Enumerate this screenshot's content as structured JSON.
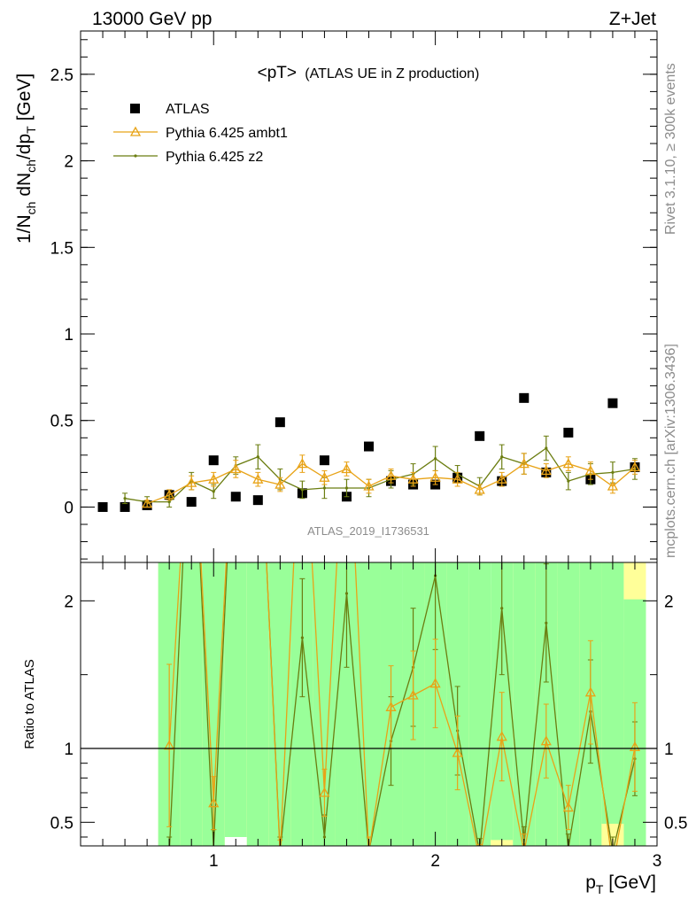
{
  "header": {
    "left": "13000 GeV pp",
    "right": "Z+Jet"
  },
  "side_labels": {
    "rivet": "Rivet 3.1.10, ≥ 300k events",
    "mcplots": "mcplots.cern.ch [arXiv:1306.3436]"
  },
  "analysis_id": "ATLAS_2019_I1736531",
  "colors": {
    "data": "#000000",
    "ambt1": "#e8a317",
    "z2": "#6b7d10",
    "band_ambt1": "#ffff99",
    "band_z2": "#99ff99"
  },
  "chart_data": [
    {
      "type": "scatter",
      "title": "<pT> (ATLAS UE in Z production)",
      "title_main": "<pT>",
      "title_sub": "(ATLAS UE in Z production)",
      "ylabel": "1/N_ch dN_ch/dp_T [GeV]",
      "ylabel_parts": {
        "a": "1/N",
        "b": "ch",
        "c": " dN",
        "d": "ch",
        "e": "/dp",
        "f": "T",
        "g": " [GeV]"
      },
      "xlim": [
        0.4,
        3.0
      ],
      "ylim": [
        -0.32,
        2.75
      ],
      "yticks": [
        0,
        0.5,
        1,
        1.5,
        2,
        2.5
      ],
      "ytick_labels": [
        "0",
        "0.5",
        "1",
        "1.5",
        "2",
        "2.5"
      ],
      "grid": false,
      "legend_position": "top-left",
      "series": [
        {
          "name": "ATLAS",
          "key": "data",
          "x": [
            0.5,
            0.6,
            0.7,
            0.8,
            0.9,
            1.0,
            1.1,
            1.2,
            1.3,
            1.4,
            1.5,
            1.6,
            1.7,
            1.8,
            1.9,
            2.0,
            2.1,
            2.2,
            2.3,
            2.4,
            2.5,
            2.6,
            2.7,
            2.8,
            2.9
          ],
          "y": [
            0.0,
            0.0,
            0.01,
            0.07,
            0.03,
            0.27,
            0.06,
            0.04,
            0.49,
            0.08,
            0.27,
            0.06,
            0.35,
            0.15,
            0.13,
            0.13,
            0.17,
            0.41,
            0.15,
            0.63,
            0.2,
            0.43,
            0.16,
            0.6,
            0.23
          ]
        },
        {
          "name": "Pythia 6.425 ambt1",
          "key": "ambt1",
          "x": [
            0.7,
            0.8,
            0.9,
            1.0,
            1.1,
            1.2,
            1.3,
            1.4,
            1.5,
            1.6,
            1.7,
            1.8,
            1.9,
            2.0,
            2.1,
            2.2,
            2.3,
            2.4,
            2.5,
            2.6,
            2.7,
            2.8,
            2.9
          ],
          "y": [
            0.02,
            0.07,
            0.14,
            0.16,
            0.22,
            0.16,
            0.13,
            0.25,
            0.17,
            0.22,
            0.12,
            0.18,
            0.16,
            0.17,
            0.16,
            0.1,
            0.16,
            0.25,
            0.21,
            0.25,
            0.21,
            0.12,
            0.23
          ],
          "err": [
            0.02,
            0.03,
            0.04,
            0.04,
            0.05,
            0.04,
            0.04,
            0.05,
            0.04,
            0.04,
            0.04,
            0.04,
            0.04,
            0.04,
            0.04,
            0.03,
            0.04,
            0.06,
            0.04,
            0.04,
            0.05,
            0.04,
            0.04
          ]
        },
        {
          "name": "Pythia 6.425 z2",
          "key": "z2",
          "x": [
            0.6,
            0.7,
            0.8,
            0.9,
            1.0,
            1.1,
            1.2,
            1.3,
            1.4,
            1.5,
            1.6,
            1.7,
            1.8,
            1.9,
            2.0,
            2.1,
            2.2,
            2.3,
            2.4,
            2.5,
            2.6,
            2.7,
            2.8,
            2.9
          ],
          "y": [
            0.05,
            0.03,
            0.03,
            0.15,
            0.09,
            0.24,
            0.29,
            0.16,
            0.1,
            0.11,
            0.11,
            0.11,
            0.16,
            0.19,
            0.28,
            0.19,
            0.12,
            0.29,
            0.25,
            0.34,
            0.15,
            0.19,
            0.2,
            0.22
          ],
          "err": [
            0.03,
            0.03,
            0.03,
            0.05,
            0.04,
            0.05,
            0.07,
            0.06,
            0.05,
            0.06,
            0.05,
            0.05,
            0.05,
            0.06,
            0.07,
            0.05,
            0.05,
            0.07,
            0.06,
            0.07,
            0.05,
            0.06,
            0.06,
            0.06
          ]
        }
      ]
    },
    {
      "type": "line",
      "ylabel": "Ratio to ATLAS",
      "xlabel": "p_T [GeV]",
      "xlabel_parts": {
        "a": "p",
        "b": "T",
        "c": " [GeV]"
      },
      "xlim": [
        0.4,
        3.0
      ],
      "ylim": [
        0.34,
        2.26
      ],
      "xticks": [
        1,
        2,
        3
      ],
      "xtick_labels": [
        "1",
        "2",
        "3"
      ],
      "yticks": [
        0.5,
        1,
        2
      ],
      "ytick_labels": [
        "0.5",
        "1",
        "2"
      ],
      "reference_line": 1,
      "bands": {
        "edges": [
          0.75,
          0.85,
          0.95,
          1.05,
          1.15,
          1.25,
          1.35,
          1.45,
          1.55,
          1.65,
          1.75,
          1.85,
          1.95,
          2.05,
          2.15,
          2.25,
          2.35,
          2.45,
          2.55,
          2.65,
          2.75,
          2.85,
          2.95
        ],
        "ambt1": [
          [
            0.34,
            2.26
          ],
          [
            0.34,
            2.26
          ],
          [
            0.34,
            2.26
          ],
          [
            0.42,
            1.64
          ],
          [
            0.34,
            2.26
          ],
          [
            0.34,
            2.26
          ],
          [
            0.34,
            1.81
          ],
          [
            0.34,
            2.26
          ],
          [
            0.34,
            1.93
          ],
          [
            0.34,
            2.26
          ],
          [
            0.34,
            2.26
          ],
          [
            0.34,
            1.79
          ],
          [
            0.34,
            2.26
          ],
          [
            0.34,
            2.26
          ],
          [
            0.34,
            2.11
          ],
          [
            0.34,
            1.63
          ],
          [
            0.34,
            2.26
          ],
          [
            0.34,
            2.26
          ],
          [
            0.34,
            1.93
          ],
          [
            0.34,
            2.26
          ],
          [
            0.34,
            1.72
          ],
          [
            0.34,
            2.26
          ]
        ],
        "z2": [
          [
            0.34,
            2.26
          ],
          [
            0.34,
            2.26
          ],
          [
            0.34,
            2.26
          ],
          [
            0.4,
            2.26
          ],
          [
            0.34,
            2.26
          ],
          [
            0.34,
            2.26
          ],
          [
            0.34,
            2.26
          ],
          [
            0.34,
            2.26
          ],
          [
            0.34,
            2.26
          ],
          [
            0.34,
            2.26
          ],
          [
            0.34,
            2.26
          ],
          [
            0.34,
            2.26
          ],
          [
            0.34,
            2.26
          ],
          [
            0.34,
            2.26
          ],
          [
            0.34,
            2.26
          ],
          [
            0.38,
            2.26
          ],
          [
            0.34,
            2.26
          ],
          [
            0.34,
            2.26
          ],
          [
            0.34,
            2.26
          ],
          [
            0.34,
            2.26
          ],
          [
            0.49,
            2.26
          ],
          [
            0.34,
            2.01
          ]
        ]
      },
      "series": [
        {
          "name": "Pythia 6.425 ambt1",
          "key": "ambt1",
          "x": [
            0.8,
            0.9,
            1.0,
            1.1,
            1.2,
            1.3,
            1.4,
            1.5,
            1.6,
            1.7,
            1.8,
            1.9,
            2.0,
            2.1,
            2.2,
            2.3,
            2.4,
            2.5,
            2.6,
            2.7,
            2.8,
            2.9
          ],
          "y": [
            1.02,
            3.5,
            0.63,
            3.5,
            3.5,
            0.28,
            3.5,
            0.7,
            3.5,
            0.3,
            1.28,
            1.36,
            1.44,
            0.97,
            0.25,
            1.08,
            0.3,
            1.05,
            0.6,
            1.38,
            0.2,
            1.01
          ],
          "err": [
            0.55,
            0.8,
            0.18,
            0.8,
            0.8,
            0.1,
            0.8,
            0.16,
            0.8,
            0.1,
            0.28,
            0.3,
            0.3,
            0.25,
            0.1,
            0.3,
            0.12,
            0.25,
            0.15,
            0.35,
            0.1,
            0.3
          ]
        },
        {
          "name": "Pythia 6.425 z2",
          "key": "z2",
          "x": [
            0.8,
            0.9,
            1.0,
            1.1,
            1.2,
            1.3,
            1.4,
            1.5,
            1.6,
            1.7,
            1.8,
            1.9,
            2.0,
            2.1,
            2.2,
            2.3,
            2.4,
            2.5,
            2.6,
            2.7,
            2.8,
            2.9
          ],
          "y": [
            0.3,
            3.5,
            0.33,
            3.5,
            3.5,
            0.3,
            1.75,
            0.4,
            2.05,
            0.3,
            1.05,
            1.55,
            2.17,
            1.12,
            0.29,
            1.95,
            0.35,
            1.85,
            0.32,
            1.25,
            0.3,
            0.93
          ],
          "err": [
            0.1,
            0.8,
            0.12,
            0.8,
            0.8,
            0.1,
            0.4,
            0.15,
            0.5,
            0.1,
            0.3,
            0.4,
            0.5,
            0.3,
            0.1,
            0.45,
            0.12,
            0.4,
            0.1,
            0.35,
            0.1,
            0.25
          ]
        }
      ]
    }
  ]
}
